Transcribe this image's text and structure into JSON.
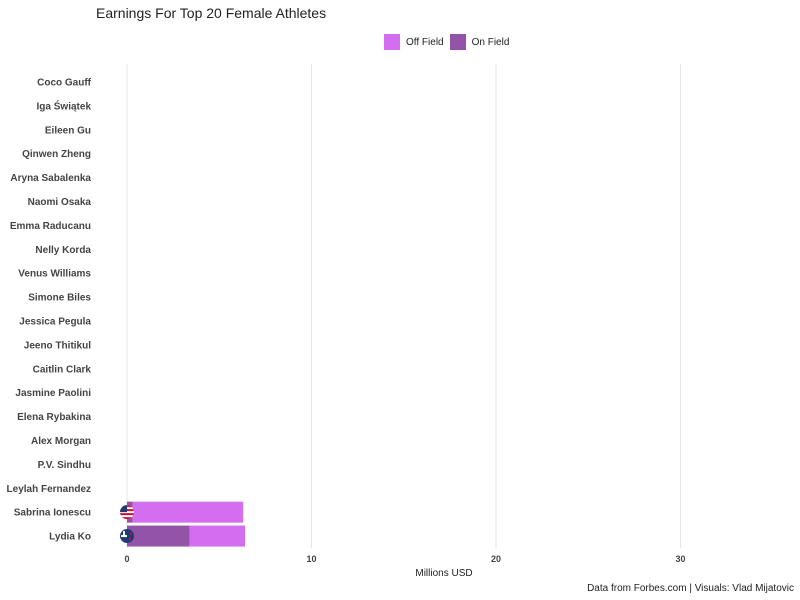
{
  "chart_data": {
    "type": "bar",
    "orientation": "horizontal",
    "stacked": true,
    "title": "Earnings For Top 20 Female Athletes",
    "xlabel": "Millions USD",
    "ylabel": "",
    "xlim": [
      0,
      36
    ],
    "xticks": [
      0,
      10,
      20,
      30
    ],
    "grid": true,
    "legend_position": "top",
    "categories": [
      "Coco Gauff",
      "Iga Świątek",
      "Eileen Gu",
      "Qinwen Zheng",
      "Aryna Sabalenka",
      "Naomi Osaka",
      "Emma Raducanu",
      "Nelly Korda",
      "Venus Williams",
      "Simone Biles",
      "Jessica Pegula",
      "Jeeno Thitikul",
      "Caitlin Clark",
      "Jasmine Paolini",
      "Elena Rybakina",
      "Alex Morgan",
      "P.V. Sindhu",
      "Leylah Fernandez",
      "Sabrina Ionescu",
      "Lydia Ko"
    ],
    "series": [
      {
        "name": "On Field",
        "color": "#9354a8",
        "values": [
          0,
          0,
          0,
          0,
          0,
          0,
          0,
          0,
          0,
          0,
          0,
          0,
          0,
          0,
          0,
          0,
          0,
          0,
          0.3,
          3.4
        ]
      },
      {
        "name": "Off Field",
        "color": "#d36ef1",
        "values": [
          0,
          0,
          0,
          0,
          0,
          0,
          0,
          0,
          0,
          0,
          0,
          0,
          0,
          0,
          0,
          0,
          0,
          0,
          6.0,
          3.0
        ]
      }
    ],
    "flag_icons": {
      "Sabrina Ionescu": "us-flag-icon",
      "Lydia Ko": "nz-flag-icon"
    }
  },
  "caption": "Data from Forbes.com | Visuals: Vlad Mijatovic"
}
